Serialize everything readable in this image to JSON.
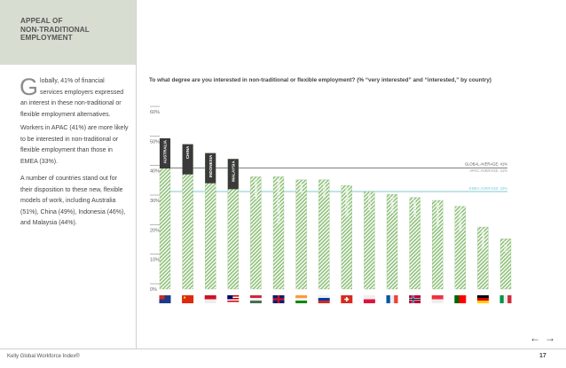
{
  "section": {
    "title_lines": [
      "APPEAL OF",
      "NON-TRADITIONAL",
      "EMPLOYMENT"
    ]
  },
  "sidebar": {
    "dropcap": "G",
    "intro": "lobally, 41% of financial services employers expressed an interest in these non-traditional or flexible employment alternatives.",
    "para2": "Workers in APAC (41%) are more likely to be interested in non-traditional or flexible employment than those in EMEA (33%).",
    "para3": "A number of countries stand out for their disposition to these new, flexible models of work, including Australia (51%), China (49%), Indonesia (46%), and Malaysia (44%)."
  },
  "footer": {
    "brand": "Kelly Global Workforce Index®",
    "page": "17",
    "prev_arrow": "←",
    "next_arrow": "→"
  },
  "colors": {
    "highlight": "#3a3a3a",
    "hatch_green": "#8fc07a",
    "global_line": "#7a7a7a",
    "emea_line": "#7ecbd2"
  },
  "chart_data": {
    "type": "bar",
    "title": "To what degree are you interested in non-traditional or flexible employment? (% “very interested” and “interested,” by country)",
    "ylim": [
      0,
      60
    ],
    "yticks": [
      "0%",
      "10%",
      "20%",
      "30%",
      "40%",
      "50%",
      "60%"
    ],
    "categories": [
      "AUSTRALIA",
      "CHINA",
      "INDONESIA",
      "MALAYSIA",
      "HUNGARY",
      "THE UNITED KINGDOM",
      "INDIA",
      "RUSSIA",
      "SWITZERLAND",
      "POLAND",
      "FRANCE",
      "NORWAY",
      "SINGAPORE",
      "PORTUGAL",
      "GERMANY",
      "ITALY"
    ],
    "values": [
      51,
      49,
      46,
      44,
      38,
      38,
      37,
      37,
      35,
      33,
      32,
      31,
      30,
      28,
      21,
      17
    ],
    "highlighted": [
      true,
      true,
      true,
      true,
      false,
      false,
      false,
      false,
      false,
      false,
      false,
      false,
      false,
      false,
      false,
      false
    ],
    "reference_lines": [
      {
        "label": "GLOBAL AVERAGE: 41%",
        "value": 41
      },
      {
        "label": "APAC AVERAGE: 41%",
        "value": 41
      },
      {
        "label": "EMEA AVERAGE: 33%",
        "value": 33
      }
    ],
    "flags": [
      "australia",
      "china",
      "indonesia",
      "malaysia",
      "hungary",
      "united-kingdom",
      "india",
      "russia",
      "switzerland",
      "poland",
      "france",
      "norway",
      "singapore",
      "portugal",
      "germany",
      "italy"
    ]
  }
}
